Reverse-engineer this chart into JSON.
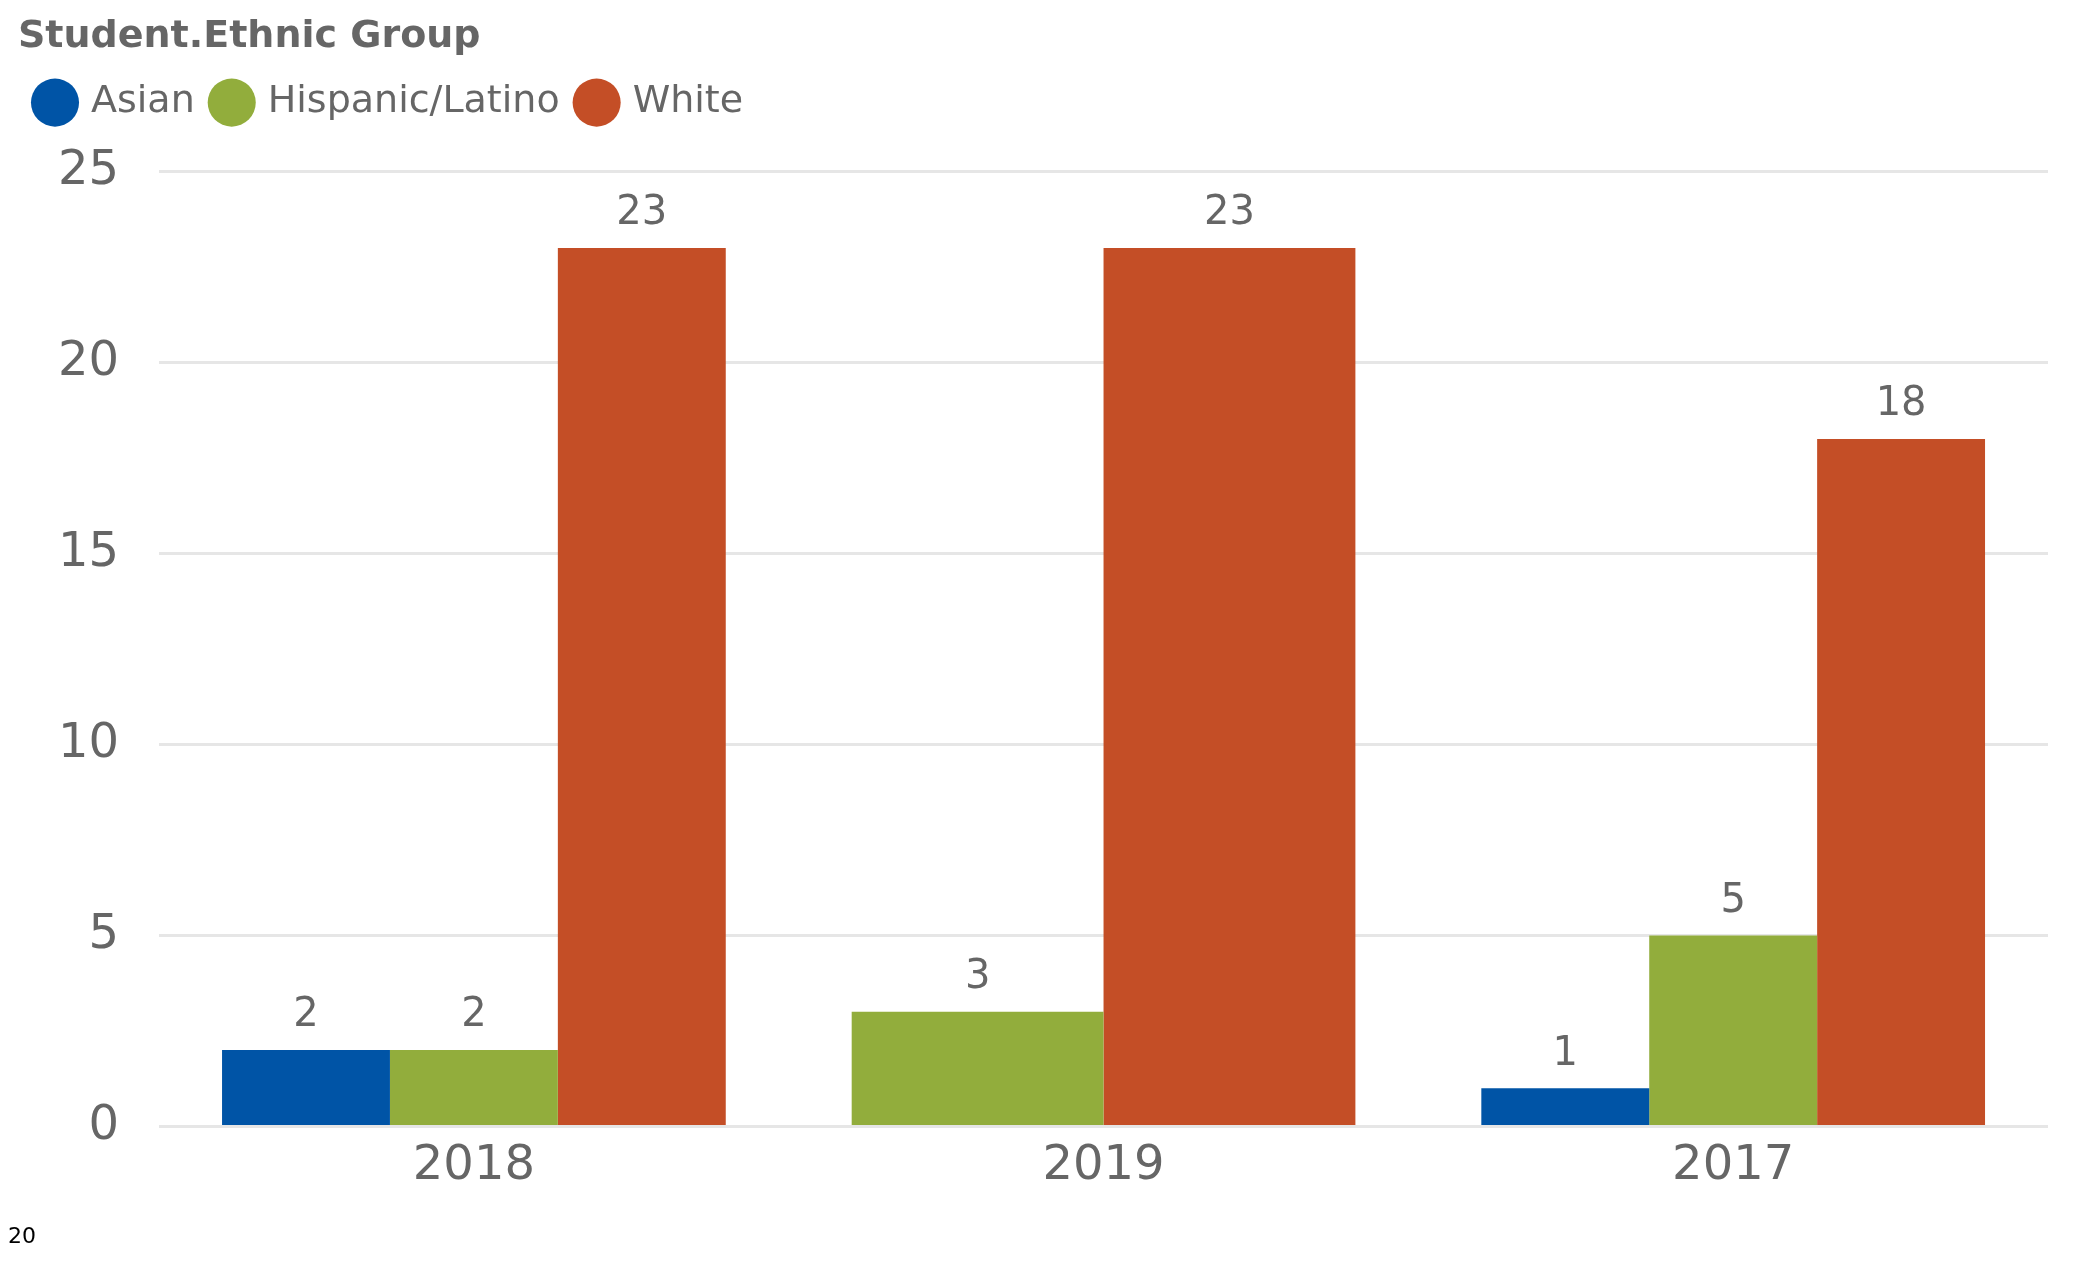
{
  "chart_data": {
    "type": "bar",
    "legend_title": "Student.Ethnic Group",
    "categories": [
      "2018",
      "2019",
      "2017"
    ],
    "series": [
      {
        "name": "Asian",
        "color": "#0054a6",
        "values": [
          2,
          null,
          1
        ]
      },
      {
        "name": "Hispanic/Latino",
        "color": "#92ad3c",
        "values": [
          2,
          3,
          5
        ]
      },
      {
        "name": "White",
        "color": "#c44e26",
        "values": [
          23,
          23,
          18
        ]
      }
    ],
    "ylim": [
      0,
      25
    ],
    "yticks": [
      0,
      5,
      10,
      15,
      20,
      25
    ],
    "grid": "y",
    "legend": "top left",
    "data_labels": true,
    "annotations": [
      "20"
    ]
  }
}
